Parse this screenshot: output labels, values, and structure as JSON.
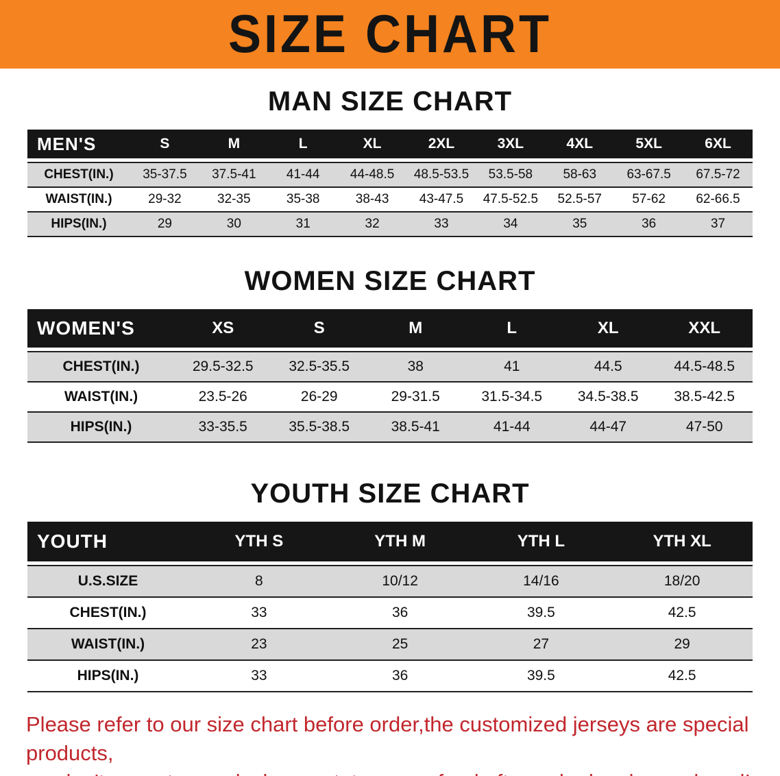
{
  "banner": {
    "title": "SIZE CHART",
    "bg_color": "#F5831F"
  },
  "sections": [
    {
      "id": "men",
      "heading": "MAN SIZE CHART",
      "table": {
        "corner_label": "MEN'S",
        "columns": [
          "S",
          "M",
          "L",
          "XL",
          "2XL",
          "3XL",
          "4XL",
          "5XL",
          "6XL"
        ],
        "rows": [
          {
            "label": "CHEST(IN.)",
            "values": [
              "35-37.5",
              "37.5-41",
              "41-44",
              "44-48.5",
              "48.5-53.5",
              "53.5-58",
              "58-63",
              "63-67.5",
              "67.5-72"
            ]
          },
          {
            "label": "WAIST(IN.)",
            "values": [
              "29-32",
              "32-35",
              "35-38",
              "38-43",
              "43-47.5",
              "47.5-52.5",
              "52.5-57",
              "57-62",
              "62-66.5"
            ]
          },
          {
            "label": "HIPS(IN.)",
            "values": [
              "29",
              "30",
              "31",
              "32",
              "33",
              "34",
              "35",
              "36",
              "37"
            ]
          }
        ]
      }
    },
    {
      "id": "women",
      "heading": "WOMEN SIZE CHART",
      "table": {
        "corner_label": "WOMEN'S",
        "columns": [
          "XS",
          "S",
          "M",
          "L",
          "XL",
          "XXL"
        ],
        "rows": [
          {
            "label": "CHEST(IN.)",
            "values": [
              "29.5-32.5",
              "32.5-35.5",
              "38",
              "41",
              "44.5",
              "44.5-48.5"
            ]
          },
          {
            "label": "WAIST(IN.)",
            "values": [
              "23.5-26",
              "26-29",
              "29-31.5",
              "31.5-34.5",
              "34.5-38.5",
              "38.5-42.5"
            ]
          },
          {
            "label": "HIPS(IN.)",
            "values": [
              "33-35.5",
              "35.5-38.5",
              "38.5-41",
              "41-44",
              "44-47",
              "47-50"
            ]
          }
        ]
      }
    },
    {
      "id": "youth",
      "heading": "YOUTH SIZE CHART",
      "table": {
        "corner_label": "YOUTH",
        "columns": [
          "YTH S",
          "YTH M",
          "YTH L",
          "YTH XL"
        ],
        "rows": [
          {
            "label": "U.S.SIZE",
            "values": [
              "8",
              "10/12",
              "14/16",
              "18/20"
            ]
          },
          {
            "label": "CHEST(IN.)",
            "values": [
              "33",
              "36",
              "39.5",
              "42.5"
            ]
          },
          {
            "label": "WAIST(IN.)",
            "values": [
              "23",
              "25",
              "27",
              "29"
            ]
          },
          {
            "label": "HIPS(IN.)",
            "values": [
              "33",
              "36",
              "39.5",
              "42.5"
            ]
          }
        ]
      }
    }
  ],
  "disclaimer": {
    "color": "#C1272D",
    "lines": [
      "Please refer to our size chart before order,the customized jerseys are special products,",
      "we don't accept cancel, change, teturn or refund after order has been placed!"
    ]
  }
}
